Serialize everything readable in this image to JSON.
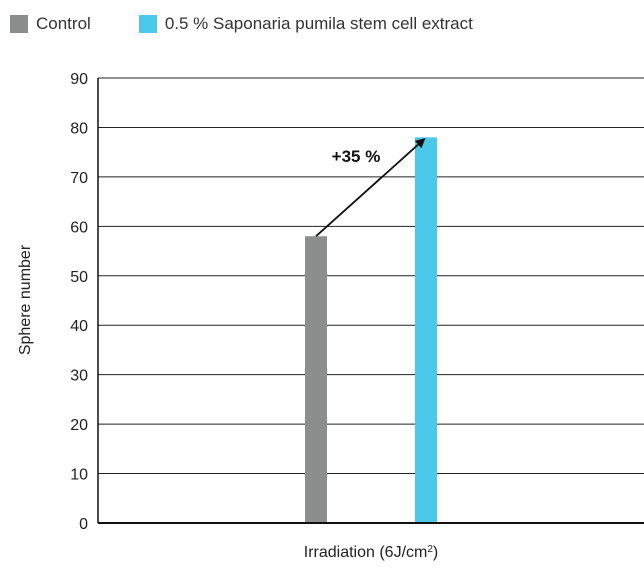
{
  "chart_data": {
    "type": "bar",
    "legend": [
      {
        "name": "Control",
        "color": "#8c8e8d"
      },
      {
        "name": "0.5 % Saponaria pumila stem cell extract",
        "color": "#4bc8ea"
      }
    ],
    "categories": [
      "Irradiation (6J/cm2)"
    ],
    "series": [
      {
        "name": "Control",
        "values": [
          58
        ],
        "color": "#8c8e8d"
      },
      {
        "name": "0.5 % Saponaria pumila stem cell extract",
        "values": [
          78
        ],
        "color": "#4bc8ea"
      }
    ],
    "xlabel_base": "Irradiation (6J/cm",
    "xlabel_sup": "2",
    "xlabel_end": ")",
    "ylabel": "Sphere number",
    "ylim": [
      0,
      90
    ],
    "yticks": [
      "0",
      "10",
      "20",
      "30",
      "40",
      "50",
      "60",
      "70",
      "80",
      "90"
    ],
    "grid": true,
    "annotation": {
      "text": "+35 %",
      "from_value": 58,
      "to_value": 78
    }
  }
}
